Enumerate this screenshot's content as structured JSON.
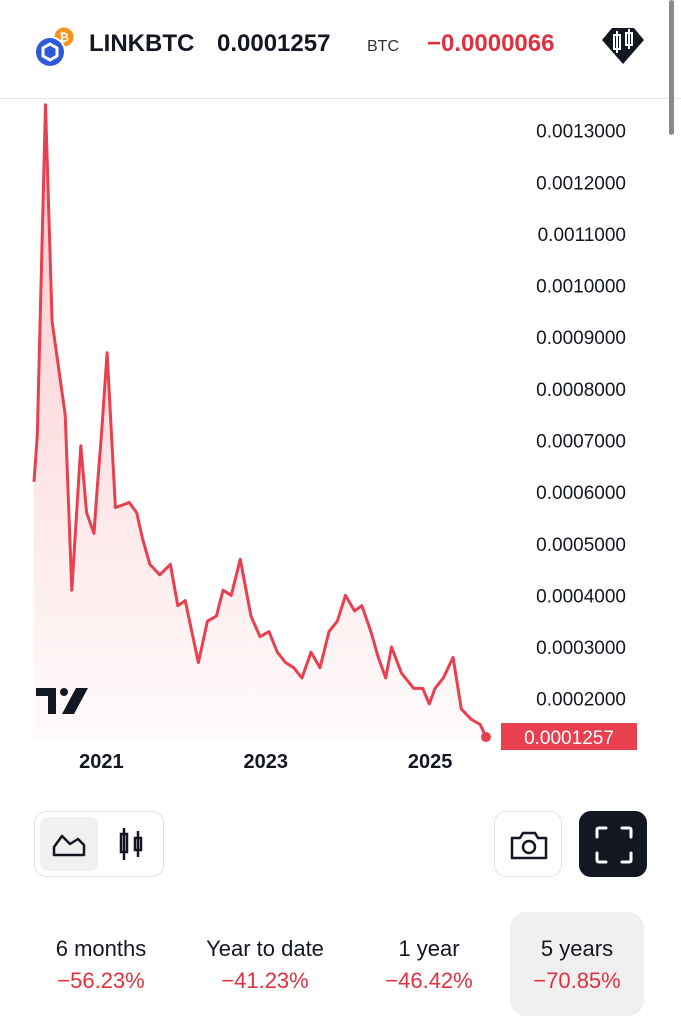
{
  "header": {
    "symbol": "LINKBTC",
    "price": "0.0001257",
    "unit": "BTC",
    "change": "−0.0000066",
    "logo_icon": "chainlink-bitcoin-pair-icon",
    "pine_icon": "candlestick-badge-icon"
  },
  "colors": {
    "line": "#e8404f",
    "negative": "#e0313f",
    "text": "#131722"
  },
  "chart_data": {
    "type": "area",
    "x_tick_labels": [
      "2021",
      "2023",
      "2025"
    ],
    "x_range": [
      2020.2,
      2025.7
    ],
    "ylim": [
      0.00012,
      0.00136
    ],
    "y_tick_labels": [
      "0.0013000",
      "0.0012000",
      "0.0011000",
      "0.0010000",
      "0.0009000",
      "0.0008000",
      "0.0007000",
      "0.0006000",
      "0.0005000",
      "0.0004000",
      "0.0003000",
      "0.0002000"
    ],
    "y_ticks": [
      0.0013,
      0.0012,
      0.0011,
      0.001,
      0.0009,
      0.0008,
      0.0007,
      0.0006,
      0.0005,
      0.0004,
      0.0003,
      0.0002
    ],
    "last_value": 0.0001257,
    "last_value_label": "0.0001257",
    "series": [
      {
        "x": [
          2020.2,
          2020.24,
          2020.34,
          2020.42,
          2020.58,
          2020.66,
          2020.77,
          2020.84,
          2020.93,
          2020.97,
          2021.02,
          2021.09,
          2021.19,
          2021.36,
          2021.45,
          2021.52,
          2021.61,
          2021.73,
          2021.86,
          2021.95,
          2022.04,
          2022.12,
          2022.2,
          2022.31,
          2022.42,
          2022.5,
          2022.6,
          2022.71,
          2022.84,
          2022.95,
          2023.06,
          2023.16,
          2023.26,
          2023.36,
          2023.46,
          2023.57,
          2023.68,
          2023.79,
          2023.89,
          2023.99,
          2024.1,
          2024.19,
          2024.3,
          2024.39,
          2024.48,
          2024.55,
          2024.67,
          2024.82,
          2024.93,
          2025.01,
          2025.08,
          2025.18,
          2025.3,
          2025.4,
          2025.52,
          2025.63,
          2025.7
        ],
        "y": [
          0.00062,
          0.00071,
          0.00135,
          0.00093,
          0.00075,
          0.00041,
          0.00069,
          0.00056,
          0.00052,
          0.00061,
          0.00071,
          0.00087,
          0.00057,
          0.00058,
          0.00056,
          0.00051,
          0.00046,
          0.00044,
          0.00046,
          0.00038,
          0.00039,
          0.00033,
          0.00027,
          0.00035,
          0.00036,
          0.00041,
          0.0004,
          0.00047,
          0.00036,
          0.00032,
          0.00033,
          0.00029,
          0.00027,
          0.00026,
          0.00024,
          0.00029,
          0.00026,
          0.00033,
          0.00035,
          0.0004,
          0.00037,
          0.00038,
          0.00033,
          0.00028,
          0.00024,
          0.0003,
          0.00025,
          0.00022,
          0.00022,
          0.00019,
          0.00022,
          0.00024,
          0.00028,
          0.00018,
          0.00016,
          0.00015,
          0.0001257
        ]
      }
    ]
  },
  "controls": {
    "chart_type_line_icon": "area-chart-icon",
    "chart_type_candle_icon": "candlestick-icon",
    "camera_icon": "camera-icon",
    "fullscreen_icon": "fullscreen-icon"
  },
  "ranges": [
    {
      "label": "6 months",
      "change": "−56.23%"
    },
    {
      "label": "Year to date",
      "change": "−41.23%"
    },
    {
      "label": "1 year",
      "change": "−46.42%"
    },
    {
      "label": "5 years",
      "change": "−70.85%"
    }
  ]
}
